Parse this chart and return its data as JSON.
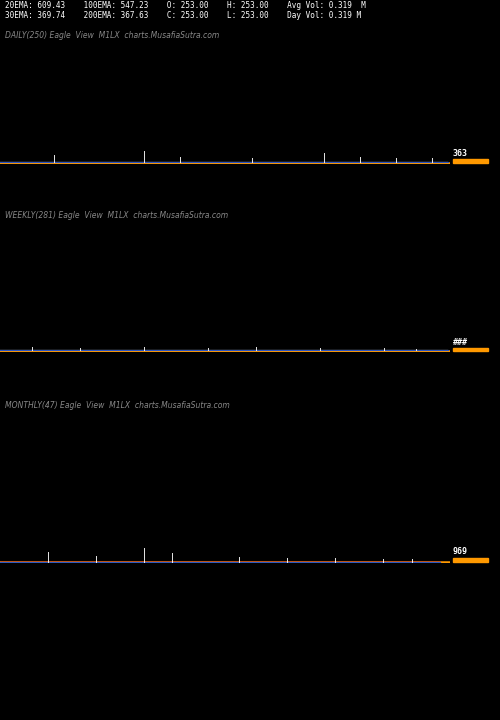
{
  "background_color": "#000000",
  "text_color": "#ffffff",
  "header_line1": "20EMA: 609.43    100EMA: 547.23    O: 253.00    H: 253.00    Avg Vol: 0.319  M",
  "header_line2": "30EMA: 369.74    200EMA: 367.63    C: 253.00    L: 253.00    Day Vol: 0.319 M",
  "panel1_label": "DAILY(250) Eagle  View  M1LX  charts.MusafiaSutra.com",
  "panel2_label": "WEEKLY(281) Eagle  View  M1LX  charts.MusafiaSutra.com",
  "panel3_label": "MONTHLY(47) Eagle  View  M1LX  charts.MusafiaSutra.com",
  "panel1_price": "363",
  "panel2_price": "###",
  "panel3_price": "969",
  "line_color_blue": "#2255cc",
  "line_color_white": "#ffffff",
  "line_color_red": "#cc2200",
  "line_color_orange": "#ff9900",
  "label_color": "#888888",
  "label_fontsize": 5.5,
  "header_fontsize": 5.5,
  "price_fontsize": 6.0,
  "panel1_spike_seed": 10,
  "panel2_spike_seed": 20,
  "panel3_spike_seed": 30
}
